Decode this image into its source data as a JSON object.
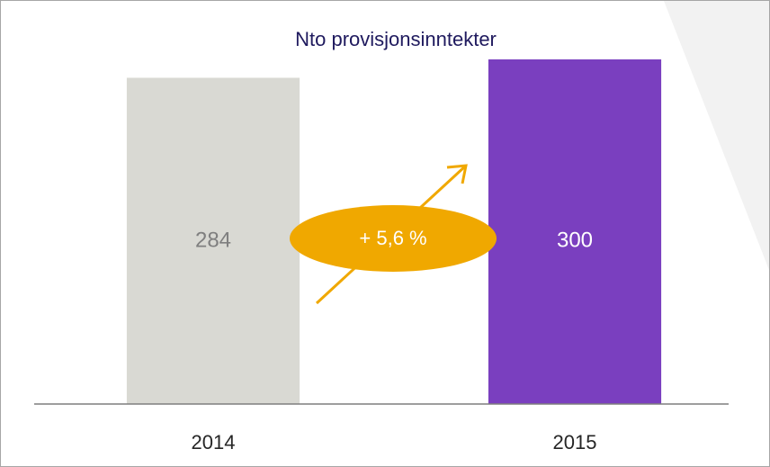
{
  "chart_data": {
    "type": "bar",
    "title": "Nto provisjonsinntekter",
    "categories": [
      "2014",
      "2015"
    ],
    "values": [
      284,
      300
    ],
    "colors": [
      "#d9d9d3",
      "#7a3fbf"
    ],
    "label_colors": [
      "#7f7f7f",
      "#ffffff"
    ],
    "annotation": "+ 5,6 %",
    "annotation_color": "#f0a800"
  }
}
